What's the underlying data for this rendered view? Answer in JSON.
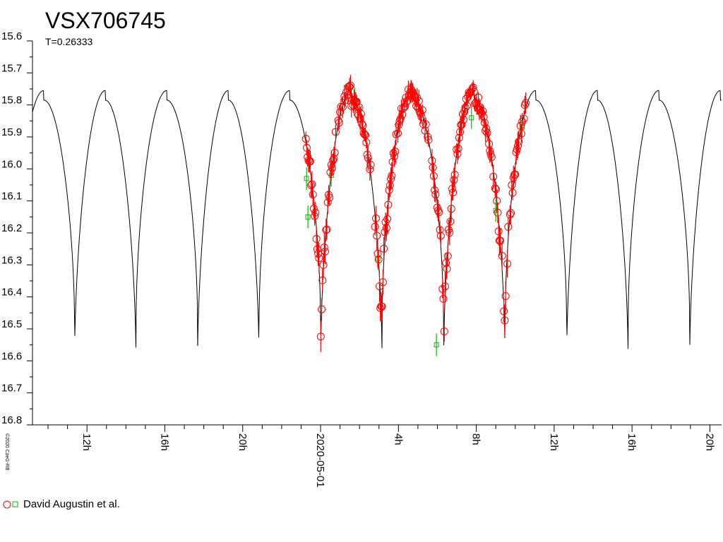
{
  "chart_data": {
    "type": "scatter",
    "title": "VSX706745",
    "subtitle": "T=0.26333",
    "copyright": "©2020 CzeG-RB",
    "ylim": [
      15.6,
      16.8
    ],
    "y_inverted": true,
    "y_ticks": [
      "15.6",
      "15.7",
      "15.8",
      "15.9",
      "16.0",
      "16.1",
      "16.2",
      "16.3",
      "16.4",
      "16.5",
      "16.6",
      "16.7",
      "16.8"
    ],
    "x_range_hours": [
      9.2,
      44.6
    ],
    "x_ticks": [
      {
        "hour": 12,
        "label": "12h"
      },
      {
        "hour": 16,
        "label": "16h"
      },
      {
        "hour": 20,
        "label": "20h"
      },
      {
        "hour": 24,
        "label": "2020-05-01"
      },
      {
        "hour": 28,
        "label": "4h"
      },
      {
        "hour": 32,
        "label": "8h"
      },
      {
        "hour": 36,
        "label": "12h"
      },
      {
        "hour": 40,
        "label": "16h"
      },
      {
        "hour": 44,
        "label": "20h"
      }
    ],
    "model_curve": {
      "period_hours": 6.31992,
      "epoch_primary_min_hour": 24.0,
      "max_mag": 15.755,
      "max_mag_secondary": 15.785,
      "primary_min_mag": 16.61,
      "secondary_min_mag": 16.48,
      "color": "#000000"
    },
    "series": [
      {
        "name": "David Augustin et al.",
        "marker": "circle",
        "color": "#ff0000",
        "x_range_hours": [
          23.2,
          34.6
        ]
      },
      {
        "name": "",
        "marker": "square",
        "color": "#00bb00",
        "points": [
          {
            "x": 23.28,
            "y": 16.03
          },
          {
            "x": 23.35,
            "y": 16.15
          },
          {
            "x": 24.55,
            "y": 16.02
          },
          {
            "x": 25.75,
            "y": 15.78
          },
          {
            "x": 26.95,
            "y": 16.28
          },
          {
            "x": 28.68,
            "y": 15.76
          },
          {
            "x": 29.95,
            "y": 16.55
          },
          {
            "x": 31.75,
            "y": 15.84
          },
          {
            "x": 33.0,
            "y": 16.13
          },
          {
            "x": 34.35,
            "y": 15.87
          }
        ]
      }
    ],
    "legend": {
      "placement": "bottom-left",
      "label": "David Augustin et al."
    }
  }
}
